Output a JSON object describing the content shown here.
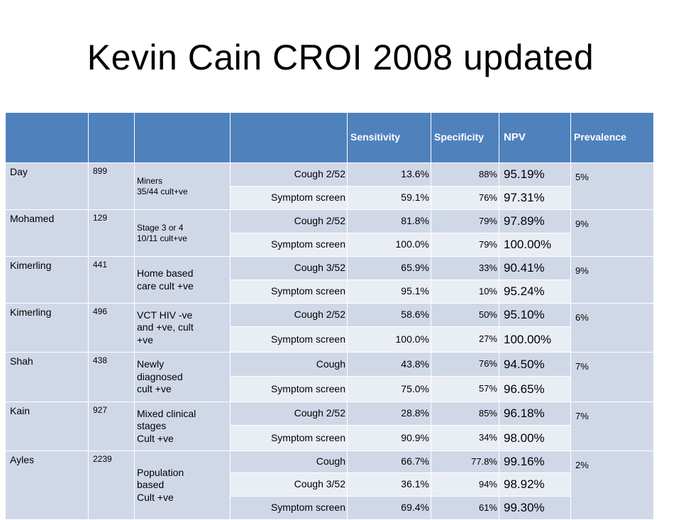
{
  "title": "Kevin Cain CROI 2008 updated",
  "headers": [
    "",
    "",
    "",
    "",
    "Sensitivity",
    "Specificity",
    "NPV",
    "Prevalence"
  ],
  "groups": [
    {
      "author": "Day",
      "n": "899",
      "population": "Miners\n35/44 cult+ve",
      "prevalence": "5%",
      "rows": [
        {
          "screen": "Cough 2/52",
          "sensitivity": "13.6%",
          "specificity": "88%",
          "npv": "95.19%"
        },
        {
          "screen": "Symptom screen",
          "sensitivity": "59.1%",
          "specificity": "76%",
          "npv": "97.31%"
        }
      ]
    },
    {
      "author": "Mohamed",
      "n": "129",
      "population": "Stage 3 or 4\n10/11 cult+ve",
      "prevalence": "9%",
      "rows": [
        {
          "screen": "Cough 2/52",
          "sensitivity": "81.8%",
          "specificity": "79%",
          "npv": "97.89%"
        },
        {
          "screen": "Symptom screen",
          "sensitivity": "100.0%",
          "specificity": "79%",
          "npv": "100.00%"
        }
      ]
    },
    {
      "author": "Kimerling",
      "n": "441",
      "population": "Home based\ncare cult +ve",
      "prevalence": "9%",
      "rows": [
        {
          "screen": "Cough 3/52",
          "sensitivity": "65.9%",
          "specificity": "33%",
          "npv": "90.41%"
        },
        {
          "screen": "Symptom screen",
          "sensitivity": "95.1%",
          "specificity": "10%",
          "npv": "95.24%"
        }
      ]
    },
    {
      "author": "Kimerling",
      "n": "496",
      "population": "VCT HIV -ve\nand +ve, cult\n+ve",
      "prevalence": "6%",
      "rows": [
        {
          "screen": "Cough 2/52",
          "sensitivity": "58.6%",
          "specificity": "50%",
          "npv": "95.10%"
        },
        {
          "screen": "Symptom screen",
          "sensitivity": "100.0%",
          "specificity": "27%",
          "npv": "100.00%"
        }
      ]
    },
    {
      "author": "Shah",
      "n": "438",
      "population": "Newly\ndiagnosed\n cult +ve",
      "prevalence": "7%",
      "rows": [
        {
          "screen": "Cough",
          "sensitivity": "43.8%",
          "specificity": "76%",
          "npv": "94.50%"
        },
        {
          "screen": "Symptom screen",
          "sensitivity": "75.0%",
          "specificity": "57%",
          "npv": "96.65%"
        }
      ]
    },
    {
      "author": "Kain",
      "n": "927",
      "population": "Mixed clinical\nstages\nCult +ve",
      "prevalence": "7%",
      "rows": [
        {
          "screen": "Cough 2/52",
          "sensitivity": "28.8%",
          "specificity": "85%",
          "npv": "96.18%"
        },
        {
          "screen": "Symptom screen",
          "sensitivity": "90.9%",
          "specificity": "34%",
          "npv": "98.00%"
        }
      ]
    },
    {
      "author": "Ayles",
      "n": "2239",
      "population": "Population\nbased\nCult +ve",
      "prevalence": "2%",
      "rows": [
        {
          "screen": "Cough",
          "sensitivity": "66.7%",
          "specificity": "77.8%",
          "npv": "99.16%"
        },
        {
          "screen": "Cough 3/52",
          "sensitivity": "36.1%",
          "specificity": "94%",
          "npv": "98.92%"
        },
        {
          "screen": "Symptom screen",
          "sensitivity": "69.4%",
          "specificity": "61%",
          "npv": "99.30%"
        }
      ]
    }
  ]
}
